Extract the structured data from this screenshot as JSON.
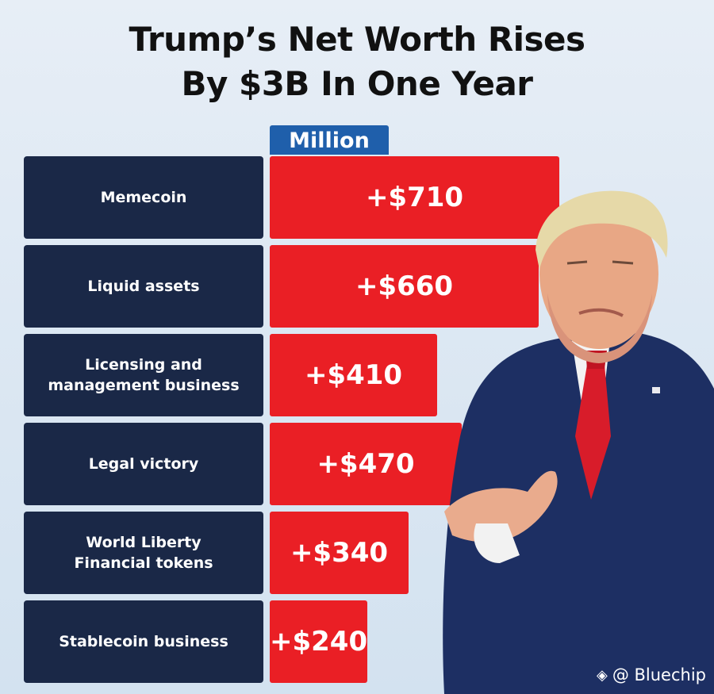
{
  "title_line1": "Trump’s Net Worth Rises",
  "title_line2": "By $3B In One Year",
  "unit_label": "Million",
  "credit": "@ Bluechip",
  "colors": {
    "category_bg": "#1a2847",
    "bar": "#ea1f25",
    "unit_tab": "#1f5fab"
  },
  "chart_data": {
    "type": "bar",
    "orientation": "horizontal",
    "title": "Trump’s Net Worth Rises By $3B In One Year",
    "unit": "Million",
    "categories": [
      "Memecoin",
      "Liquid assets",
      "Licensing and management business",
      "Legal victory",
      "World Liberty Financial tokens",
      "Stablecoin business"
    ],
    "category_lines": [
      [
        "Memecoin"
      ],
      [
        "Liquid assets"
      ],
      [
        "Licensing and",
        "management business"
      ],
      [
        "Legal victory"
      ],
      [
        "World Liberty",
        "Financial tokens"
      ],
      [
        "Stablecoin business"
      ]
    ],
    "values": [
      710,
      660,
      410,
      470,
      340,
      240
    ],
    "data_labels": [
      "+$710",
      "+$660",
      "+$410",
      "+$470",
      "+$340",
      "+$240"
    ],
    "xlim": [
      0,
      710
    ]
  }
}
